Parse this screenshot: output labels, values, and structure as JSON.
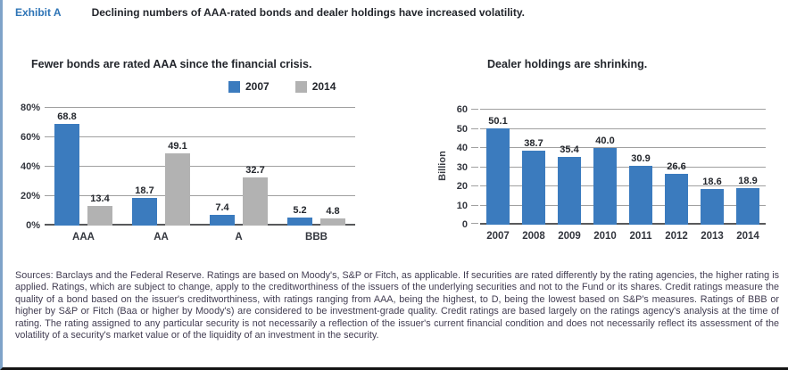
{
  "header": {
    "exhibit_label": "Exhibit A",
    "title": "Declining numbers of AAA-rated bonds and dealer holdings have increased volatility."
  },
  "colors": {
    "series_2007_blue": "#3B7BBE",
    "series_2014_gray": "#B2B2B2",
    "exhibit_label_blue": "#2E74B6",
    "gridline_gray": "#A0A0A0"
  },
  "chart_data": [
    {
      "type": "bar",
      "title": "Fewer bonds are rated AAA since the financial crisis.",
      "categories": [
        "AAA",
        "AA",
        "A",
        "BBB"
      ],
      "series": [
        {
          "name": "2007",
          "color": "#3B7BBE",
          "values": [
            68.8,
            18.7,
            7.4,
            5.2
          ]
        },
        {
          "name": "2014",
          "color": "#B2B2B2",
          "values": [
            13.4,
            49.1,
            32.7,
            4.8
          ]
        }
      ],
      "xlabel": "",
      "ylabel": "",
      "ylim": [
        0,
        80
      ],
      "yticks": [
        "0%",
        "20%",
        "40%",
        "60%",
        "80%"
      ],
      "grid": true,
      "legend_position": "top-right",
      "data_labels": true
    },
    {
      "type": "bar",
      "title": "Dealer holdings are shrinking.",
      "categories": [
        "2007",
        "2008",
        "2009",
        "2010",
        "2011",
        "2012",
        "2013",
        "2014"
      ],
      "series": [
        {
          "name": "Dealer holdings",
          "color": "#3B7BBE",
          "values": [
            50.1,
            38.7,
            35.4,
            40.0,
            30.9,
            26.6,
            18.6,
            18.9
          ]
        }
      ],
      "xlabel": "",
      "ylabel": "Billion",
      "ylim": [
        0,
        60
      ],
      "yticks": [
        "0",
        "10",
        "20",
        "30",
        "40",
        "50",
        "60"
      ],
      "grid": true,
      "legend_position": "none",
      "data_labels": true
    }
  ],
  "footnote": "Sources: Barclays and the Federal Reserve. Ratings are based on Moody's, S&P or Fitch, as applicable. If securities are rated differently by the rating agencies, the higher rating is applied. Ratings, which are subject to change, apply to the creditworthiness of the issuers of the underlying securities and not to the Fund or its shares. Credit ratings measure the quality of a bond based on the issuer's creditworthiness, with ratings ranging from AAA, being the highest, to D, being the lowest based on S&P's measures. Ratings of BBB or higher by S&P or Fitch (Baa or higher by Moody's) are considered to be investment-grade quality. Credit ratings are based largely on the ratings agency's analysis at the time of rating. The rating assigned to any particular security is not necessarily a reflection of the issuer's current financial condition and does not necessarily reflect its assessment of the volatility of a security's market value or of the liquidity of an investment in the security."
}
